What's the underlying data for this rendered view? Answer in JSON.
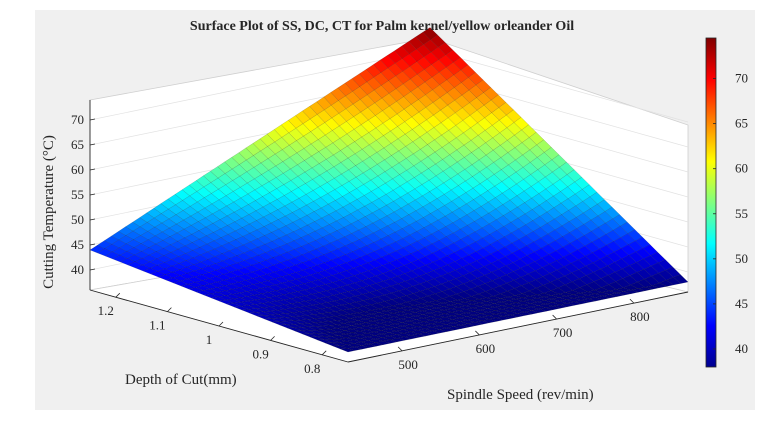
{
  "chart_data": {
    "type": "surface",
    "title": "Surface Plot of SS, DC, CT for Palm kernel/yellow orleander Oil",
    "xlabel": "Spindle Speed (rev/min)",
    "ylabel": "Depth of Cut(mm)",
    "zlabel": "Cutting Temperature (°C)",
    "x_ticks": [
      "500",
      "600",
      "700",
      "800"
    ],
    "y_ticks": [
      "0.8",
      "0.9",
      "1",
      "1.1",
      "1.2"
    ],
    "z_ticks": [
      "40",
      "45",
      "50",
      "55",
      "60",
      "65",
      "70"
    ],
    "colorbar_ticks": [
      "40",
      "45",
      "50",
      "55",
      "60",
      "65",
      "70"
    ],
    "xlim": [
      430,
      870
    ],
    "ylim": [
      0.75,
      1.25
    ],
    "zlim": [
      36,
      74
    ],
    "clim": [
      38,
      74.5
    ],
    "colormap": "jet",
    "corner_values": [
      {
        "spindle_speed": 430,
        "depth_of_cut": 0.75,
        "temperature": 38
      },
      {
        "spindle_speed": 870,
        "depth_of_cut": 0.75,
        "temperature": 38
      },
      {
        "spindle_speed": 870,
        "depth_of_cut": 1.25,
        "temperature": 74.5
      },
      {
        "spindle_speed": 430,
        "depth_of_cut": 1.25,
        "temperature": 44
      }
    ],
    "min_temperature": 38,
    "max_temperature": 74.5
  }
}
